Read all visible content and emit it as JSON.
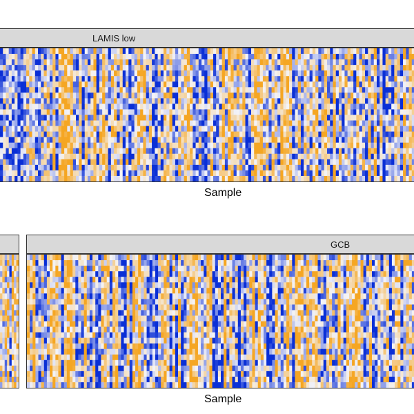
{
  "chart_data": [
    {
      "type": "heatmap",
      "facet_label": "LAMIS low",
      "xlabel": "Sample",
      "ylabel": "",
      "grid": false,
      "legend": "none",
      "color_scale": {
        "low": "#0a2fd6",
        "mid": "#f4f4f8",
        "high": "#f5a623"
      },
      "n_samples": 142,
      "n_rows": 24
    },
    {
      "type": "heatmap",
      "facet_label": "",
      "xlabel": "",
      "ylabel": "",
      "grid": false,
      "legend": "none",
      "color_scale": {
        "low": "#0a2fd6",
        "mid": "#f4f4f8",
        "high": "#f5a623"
      },
      "n_samples": 8,
      "n_rows": 24
    },
    {
      "type": "heatmap",
      "facet_label": "GCB",
      "xlabel": "Sample",
      "ylabel": "",
      "grid": false,
      "legend": "none",
      "color_scale": {
        "low": "#0a2fd6",
        "mid": "#f4f4f8",
        "high": "#f5a623"
      },
      "n_samples": 136,
      "n_rows": 24
    }
  ]
}
